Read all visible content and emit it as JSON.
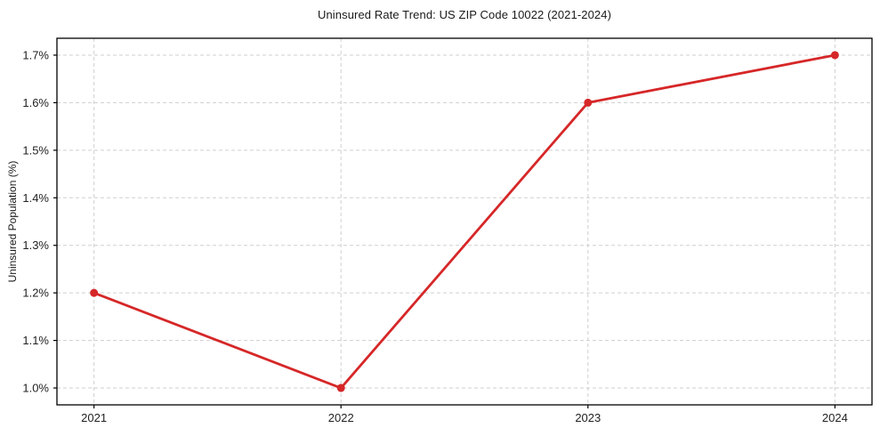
{
  "chart_data": {
    "type": "line",
    "title": "Uninsured Rate Trend: US ZIP Code 10022 (2021-2024)",
    "xlabel": "",
    "ylabel": "Uninsured Population (%)",
    "x": [
      2021,
      2022,
      2023,
      2024
    ],
    "series": [
      {
        "name": "Uninsured rate",
        "values": [
          1.2,
          1.0,
          1.6,
          1.7
        ]
      }
    ],
    "xticks": [
      2021,
      2022,
      2023,
      2024
    ],
    "xtick_labels": [
      "2021",
      "2022",
      "2023",
      "2024"
    ],
    "yticks": [
      1.0,
      1.1,
      1.2,
      1.3,
      1.4,
      1.5,
      1.6,
      1.7
    ],
    "ytick_labels": [
      "1.0%",
      "1.1%",
      "1.2%",
      "1.3%",
      "1.4%",
      "1.5%",
      "1.6%",
      "1.7%"
    ],
    "xlim": [
      2020.85,
      2024.15
    ],
    "ylim": [
      0.9645,
      1.7355
    ],
    "grid": true,
    "grid_style": "dashed",
    "legend_position": "none",
    "colors": {
      "line": "#d62728",
      "marker": "#d62728",
      "grid": "#cfcfcf",
      "spine": "#000000",
      "tick_label": "#222222",
      "background": "#ffffff"
    },
    "line_width": 2.8,
    "marker_radius": 4.5
  }
}
